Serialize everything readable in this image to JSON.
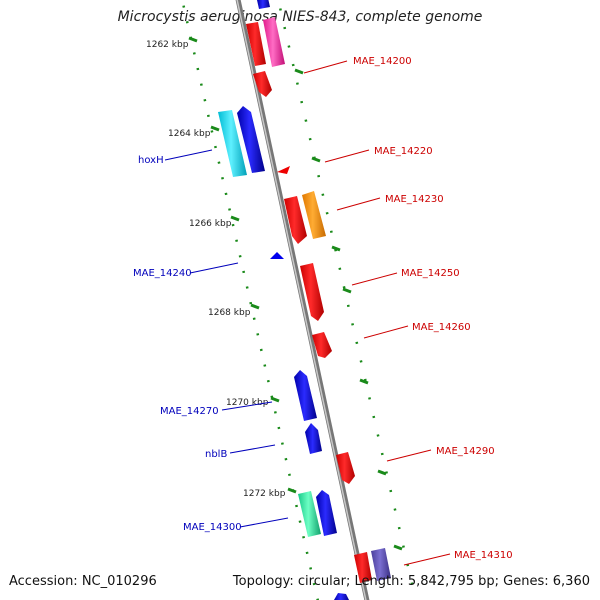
{
  "title": "Microcystis aeruginosa NIES-843, complete genome",
  "accession_text": "Accession: NC_010296",
  "summary_text": "Topology: circular; Length: 5,842,795 bp; Genes: 6,360",
  "ruler_labels": [
    "1262 kbp",
    "1264 kbp",
    "1266 kbp",
    "1268 kbp",
    "1270 kbp",
    "1272 kbp"
  ],
  "gene_labels_right": [
    "MAE_14200",
    "MAE_14220",
    "MAE_14230",
    "MAE_14250",
    "MAE_14260",
    "MAE_14290",
    "MAE_14310"
  ],
  "gene_labels_left": [
    "hoxH",
    "MAE_14240",
    "MAE_14270",
    "nblB",
    "MAE_14300"
  ],
  "colors": {
    "forward_feature": "#ff0000",
    "reverse_feature": "#0000ee",
    "right_label": "#cc0000",
    "left_label": "#0000bb",
    "ruler_ticks": "#1a8a1a",
    "genome_backbone": "#888888"
  }
}
